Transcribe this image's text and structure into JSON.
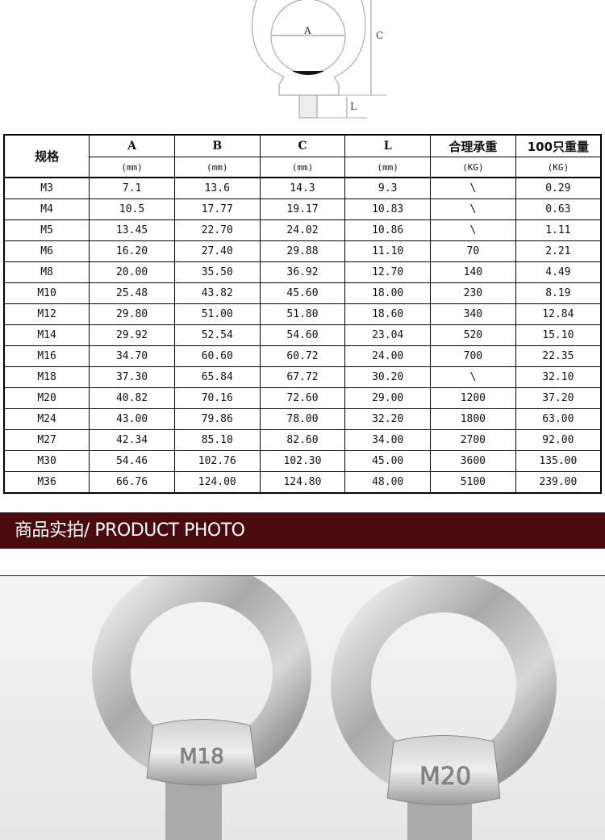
{
  "diagram": {
    "labels": {
      "a": "A",
      "c": "C",
      "l": "L"
    }
  },
  "table": {
    "spec_header": "规格",
    "columns": [
      {
        "name": "A",
        "unit": "(mm)"
      },
      {
        "name": "B",
        "unit": "(mm)"
      },
      {
        "name": "C",
        "unit": "(mm)"
      },
      {
        "name": "L",
        "unit": "(mm)"
      },
      {
        "name": "合理承重",
        "unit": "(KG)"
      },
      {
        "name": "100只重量",
        "unit": "(KG)"
      }
    ],
    "rows": [
      [
        "M3",
        "7.1",
        "13.6",
        "14.3",
        "9.3",
        "\\",
        "0.29"
      ],
      [
        "M4",
        "10.5",
        "17.77",
        "19.17",
        "10.83",
        "\\",
        "0.63"
      ],
      [
        "M5",
        "13.45",
        "22.70",
        "24.02",
        "10.86",
        "\\",
        "1.11"
      ],
      [
        "M6",
        "16.20",
        "27.40",
        "29.88",
        "11.10",
        "70",
        "2.21"
      ],
      [
        "M8",
        "20.00",
        "35.50",
        "36.92",
        "12.70",
        "140",
        "4.49"
      ],
      [
        "M10",
        "25.48",
        "43.82",
        "45.60",
        "18.00",
        "230",
        "8.19"
      ],
      [
        "M12",
        "29.80",
        "51.00",
        "51.80",
        "18.60",
        "340",
        "12.84"
      ],
      [
        "M14",
        "29.92",
        "52.54",
        "54.60",
        "23.04",
        "520",
        "15.10"
      ],
      [
        "M16",
        "34.70",
        "60.60",
        "60.72",
        "24.00",
        "700",
        "22.35"
      ],
      [
        "M18",
        "37.30",
        "65.84",
        "67.72",
        "30.20",
        "\\",
        "32.10"
      ],
      [
        "M20",
        "40.82",
        "70.16",
        "72.60",
        "29.00",
        "1200",
        "37.20"
      ],
      [
        "M24",
        "43.00",
        "79.86",
        "78.00",
        "32.20",
        "1800",
        "63.00"
      ],
      [
        "M27",
        "42.34",
        "85.10",
        "82.60",
        "34.00",
        "2700",
        "92.00"
      ],
      [
        "M30",
        "54.46",
        "102.76",
        "102.30",
        "45.00",
        "3600",
        "135.00"
      ],
      [
        "M36",
        "66.76",
        "124.00",
        "124.80",
        "48.00",
        "5100",
        "239.00"
      ]
    ]
  },
  "banner": {
    "title": "商品实拍/ PRODUCT PHOTO",
    "color": "#4a0b0e"
  },
  "photo": {
    "bolt_left_mark": "M18",
    "bolt_right_mark": "M20"
  }
}
